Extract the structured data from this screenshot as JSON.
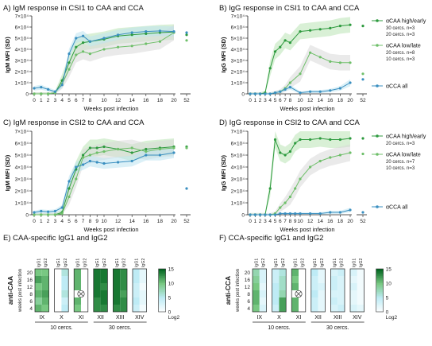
{
  "common": {
    "xlabel": "Weeks post infection",
    "x_ticks": [
      "0",
      "1",
      "2",
      "3",
      "4",
      "5",
      "6",
      "7",
      "8",
      "9",
      "10",
      "12",
      "14",
      "16",
      "18",
      "20",
      "52"
    ],
    "colors": {
      "high_early": "#2d9a3e",
      "low_late": "#6fbf6a",
      "cca_all": "#3a8fc0",
      "band_green": "#b9e3b4",
      "band_gray": "#d9d9d9",
      "band_blue": "#bde3f0"
    }
  },
  "chart_data": [
    {
      "type": "line",
      "panel": "A",
      "title": "A) IgM response in CSI1 to CAA and CCA",
      "xlabel": "Weeks post infection",
      "ylabel": "IgM MFI (SD)",
      "ylim": [
        0,
        70000
      ],
      "y_ticks": [
        "0",
        "1×10⁴",
        "2×10⁴",
        "3×10⁴",
        "4×10⁴",
        "5×10⁴",
        "6×10⁴",
        "7×10⁴"
      ],
      "series": [
        {
          "key": "high_early",
          "x": [
            0,
            1,
            2,
            3,
            4,
            5,
            6,
            7,
            8,
            10,
            12,
            14,
            16,
            18,
            20,
            52
          ],
          "y": [
            0,
            0,
            0,
            1000,
            12000,
            28000,
            42000,
            46000,
            47000,
            49000,
            52000,
            53000,
            54000,
            55000,
            55500,
            53000
          ]
        },
        {
          "key": "low_late",
          "x": [
            0,
            1,
            2,
            3,
            4,
            5,
            6,
            7,
            8,
            10,
            12,
            14,
            16,
            18,
            20,
            52
          ],
          "y": [
            0,
            0,
            0,
            1000,
            9000,
            22000,
            35000,
            38000,
            36000,
            40000,
            42000,
            43000,
            45000,
            47000,
            55000,
            48000
          ]
        },
        {
          "key": "cca_all",
          "x": [
            0,
            1,
            2,
            3,
            4,
            5,
            6,
            7,
            8,
            10,
            12,
            14,
            16,
            18,
            20,
            52
          ],
          "y": [
            5000,
            6000,
            4000,
            2000,
            8000,
            36000,
            50000,
            52000,
            47000,
            50000,
            53000,
            55000,
            56000,
            56500,
            56000,
            55000
          ]
        }
      ]
    },
    {
      "type": "line",
      "panel": "B",
      "title": "B) IgG response in CSI1 to CAA and CCA",
      "xlabel": "Weeks post infection",
      "ylabel": "IgG MFI (SD)",
      "ylim": [
        0,
        70000
      ],
      "y_ticks": [
        "0",
        "1×10⁴",
        "2×10⁴",
        "3×10⁴",
        "4×10⁴",
        "5×10⁴",
        "6×10⁴",
        "7×10⁴"
      ],
      "legend": [
        {
          "key": "high_early",
          "label": "αCAA high/early",
          "lines": [
            "30 cercs. n=3",
            "20 cercs. n=3"
          ]
        },
        {
          "key": "low_late",
          "label": "αCAA low/late",
          "lines": [
            "20 cercs. n=8",
            "10 cercs. n=3"
          ]
        },
        {
          "key": "cca_all",
          "label": "αCCA all",
          "lines": []
        }
      ],
      "series": [
        {
          "key": "high_early",
          "x": [
            0,
            1,
            2,
            3,
            4,
            5,
            6,
            7,
            8,
            10,
            12,
            14,
            16,
            18,
            20,
            52
          ],
          "y": [
            0,
            0,
            0,
            1000,
            23000,
            38000,
            42000,
            48000,
            46000,
            56000,
            57000,
            58000,
            59000,
            61000,
            62000,
            61000
          ]
        },
        {
          "key": "low_late",
          "x": [
            0,
            1,
            2,
            3,
            4,
            5,
            6,
            7,
            8,
            10,
            12,
            14,
            16,
            18,
            20,
            52
          ],
          "y": [
            0,
            0,
            0,
            0,
            0,
            1000,
            2000,
            5000,
            10000,
            18000,
            37000,
            33000,
            29000,
            28000,
            28000,
            18000
          ]
        },
        {
          "key": "cca_all",
          "x": [
            0,
            1,
            2,
            3,
            4,
            5,
            6,
            7,
            8,
            10,
            12,
            14,
            16,
            18,
            20,
            52
          ],
          "y": [
            0,
            0,
            0,
            0,
            0,
            1000,
            2000,
            4000,
            6000,
            1000,
            2000,
            2000,
            3000,
            5000,
            10000,
            13000
          ]
        }
      ]
    },
    {
      "type": "line",
      "panel": "C",
      "title": "C) IgM response in CSI2 to CAA and CCA",
      "xlabel": "Weeks post infection",
      "ylabel": "IgM MFI (SD)",
      "ylim": [
        0,
        70000
      ],
      "y_ticks": [
        "0",
        "1×10⁴",
        "2×10⁴",
        "3×10⁴",
        "4×10⁴",
        "5×10⁴",
        "6×10⁴",
        "7×10⁴"
      ],
      "series": [
        {
          "key": "high_early",
          "x": [
            0,
            1,
            2,
            3,
            4,
            5,
            6,
            7,
            8,
            9,
            10,
            12,
            14,
            16,
            18,
            20,
            52
          ],
          "y": [
            0,
            0,
            0,
            0,
            2000,
            22000,
            38000,
            50000,
            56000,
            56000,
            57000,
            55000,
            52000,
            55000,
            56000,
            57000,
            57000
          ]
        },
        {
          "key": "low_late",
          "x": [
            0,
            1,
            2,
            3,
            4,
            5,
            6,
            7,
            8,
            9,
            10,
            12,
            14,
            16,
            18,
            20,
            52
          ],
          "y": [
            0,
            0,
            0,
            0,
            1000,
            15000,
            30000,
            48000,
            50000,
            52000,
            53000,
            55000,
            56000,
            53000,
            55000,
            56000,
            56000
          ]
        },
        {
          "key": "cca_all",
          "x": [
            0,
            1,
            2,
            3,
            4,
            5,
            6,
            7,
            8,
            9,
            10,
            12,
            14,
            16,
            18,
            20,
            52
          ],
          "y": [
            2000,
            3000,
            2500,
            3000,
            6000,
            28000,
            40000,
            42000,
            45000,
            44000,
            43000,
            44000,
            45000,
            50000,
            50000,
            52000,
            22000
          ]
        }
      ]
    },
    {
      "type": "line",
      "panel": "D",
      "title": "D) IgG response in CSI2 to CAA and CCA",
      "xlabel": "Weeks post infection",
      "ylabel": "IgG MFI (SD)",
      "ylim": [
        0,
        70000
      ],
      "y_ticks": [
        "0",
        "1×10⁴",
        "2×10⁴",
        "3×10⁴",
        "4×10⁴",
        "5×10⁴",
        "6×10⁴",
        "7×10⁴"
      ],
      "legend": [
        {
          "key": "high_early",
          "label": "αCAA high/early",
          "lines": [
            "20 cercs. n=3"
          ]
        },
        {
          "key": "low_late",
          "label": "αCAA low/late",
          "lines": [
            "20 cercs. n=7",
            "10 cercs. n=3"
          ]
        },
        {
          "key": "cca_all",
          "label": "αCCA all",
          "lines": []
        }
      ],
      "series": [
        {
          "key": "high_early",
          "x": [
            0,
            1,
            2,
            3,
            4,
            5,
            6,
            7,
            8,
            9,
            10,
            12,
            14,
            16,
            18,
            20,
            52
          ],
          "y": [
            0,
            0,
            0,
            0,
            22000,
            63000,
            52000,
            50000,
            53000,
            60000,
            63000,
            63000,
            64000,
            63000,
            63000,
            64000,
            64000
          ]
        },
        {
          "key": "low_late",
          "x": [
            0,
            1,
            2,
            3,
            4,
            5,
            6,
            7,
            8,
            9,
            10,
            12,
            14,
            16,
            18,
            20,
            52
          ],
          "y": [
            0,
            0,
            0,
            0,
            0,
            1000,
            6000,
            10000,
            15000,
            22000,
            30000,
            40000,
            45000,
            48000,
            50000,
            52000,
            51000
          ]
        },
        {
          "key": "cca_all",
          "x": [
            0,
            1,
            2,
            3,
            4,
            5,
            6,
            7,
            8,
            9,
            10,
            12,
            14,
            16,
            18,
            20,
            52
          ],
          "y": [
            0,
            0,
            0,
            0,
            0,
            0,
            1000,
            1000,
            1000,
            1000,
            1000,
            1000,
            1000,
            2000,
            2000,
            4000,
            2000
          ]
        }
      ]
    },
    {
      "type": "heatmap",
      "panel": "E",
      "title": "E) CAA-specific IgG1 and IgG2",
      "ylabel": "anti-CAA",
      "y_inner_label": "weeks post infection",
      "rows": [
        "20",
        "16",
        "12",
        "8",
        "6",
        "4"
      ],
      "column_labels": [
        "IgG1",
        "IgG2"
      ],
      "groups": [
        "IX",
        "X",
        "XI",
        "XII",
        "XIII",
        "XIV"
      ],
      "group_footers": [
        {
          "label": "10 cercs.",
          "span": [
            0,
            2
          ]
        },
        {
          "label": "30 cercs.",
          "span": [
            3,
            5
          ]
        }
      ],
      "missing_marker": {
        "group": 2,
        "row": 3,
        "cols": [
          0,
          1
        ]
      },
      "colorbar": {
        "ticks": [
          "15",
          "10",
          "5",
          "0"
        ],
        "label": "Log2",
        "vmin": 0,
        "vmax": 15
      },
      "values": [
        [
          [
            10,
            10
          ],
          [
            0,
            6
          ],
          [
            11,
            0
          ],
          [
            14,
            14
          ],
          [
            14,
            13
          ],
          [
            5,
            2
          ]
        ],
        [
          [
            12,
            11
          ],
          [
            0,
            5
          ],
          [
            11,
            0
          ],
          [
            14,
            14
          ],
          [
            14,
            13
          ],
          [
            5,
            2
          ]
        ],
        [
          [
            10,
            11
          ],
          [
            0,
            5
          ],
          [
            11,
            null
          ],
          [
            14,
            13
          ],
          [
            14,
            13
          ],
          [
            4,
            1
          ]
        ],
        [
          [
            11,
            12
          ],
          [
            0,
            6
          ],
          [
            null,
            null
          ],
          [
            14,
            14
          ],
          [
            14,
            12
          ],
          [
            4,
            2
          ]
        ],
        [
          [
            9,
            11
          ],
          [
            0,
            4
          ],
          [
            11,
            0
          ],
          [
            13,
            14
          ],
          [
            14,
            13
          ],
          [
            5,
            2
          ]
        ],
        [
          [
            11,
            10
          ],
          [
            0,
            5
          ],
          [
            10,
            0
          ],
          [
            13,
            13
          ],
          [
            13,
            13
          ],
          [
            4,
            1
          ]
        ]
      ]
    },
    {
      "type": "heatmap",
      "panel": "F",
      "title": "F) CCA-specific IgG1 and IgG2",
      "ylabel": "anti-CCA",
      "y_inner_label": "weeks post infection",
      "rows": [
        "20",
        "16",
        "12",
        "8",
        "6",
        "4"
      ],
      "column_labels": [
        "IgG1",
        "IgG2"
      ],
      "groups": [
        "IX",
        "X",
        "XI",
        "XII",
        "XIII",
        "XIV"
      ],
      "group_footers": [
        {
          "label": "10 cercs.",
          "span": [
            0,
            2
          ]
        },
        {
          "label": "30 cercs.",
          "span": [
            3,
            5
          ]
        }
      ],
      "missing_marker": {
        "group": 2,
        "row": 3,
        "cols": [
          0,
          1
        ]
      },
      "colorbar": {
        "ticks": [
          "15",
          "10",
          "5",
          "0"
        ],
        "label": "Log2",
        "vmin": 0,
        "vmax": 15
      },
      "values": [
        [
          [
            8,
            3
          ],
          [
            4,
            6
          ],
          [
            11,
            0
          ],
          [
            5,
            2
          ],
          [
            3,
            4
          ],
          [
            3,
            1
          ]
        ],
        [
          [
            9,
            3
          ],
          [
            4,
            7
          ],
          [
            10,
            0
          ],
          [
            4,
            2
          ],
          [
            4,
            3
          ],
          [
            2,
            1
          ]
        ],
        [
          [
            10,
            2
          ],
          [
            5,
            7
          ],
          [
            11,
            null
          ],
          [
            4,
            3
          ],
          [
            4,
            3
          ],
          [
            3,
            1
          ]
        ],
        [
          [
            11,
            3
          ],
          [
            5,
            8
          ],
          [
            null,
            null
          ],
          [
            5,
            2
          ],
          [
            3,
            3
          ],
          [
            2,
            1
          ]
        ],
        [
          [
            11,
            2
          ],
          [
            5,
            12
          ],
          [
            11,
            0
          ],
          [
            4,
            2
          ],
          [
            4,
            3
          ],
          [
            2,
            1
          ]
        ],
        [
          [
            10,
            3
          ],
          [
            4,
            12
          ],
          [
            11,
            0
          ],
          [
            4,
            2
          ],
          [
            3,
            4
          ],
          [
            3,
            2
          ]
        ]
      ]
    }
  ]
}
